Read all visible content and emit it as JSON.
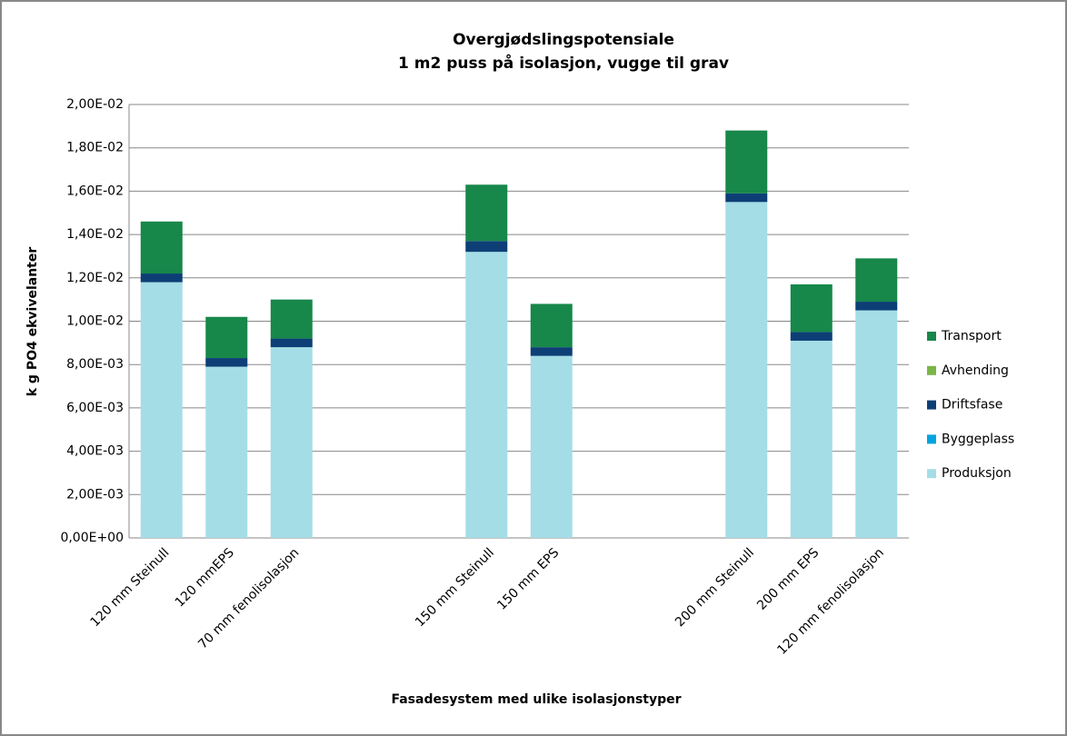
{
  "chart_data": {
    "type": "stacked_bar",
    "title": "Overgjødslingspotensiale",
    "subtitle": "1 m2 puss på isolasjon, vugge til grav",
    "x_label": "Fasadesystem med ulike isolasjonstyper",
    "y_label": "k g PO4 ekvivelanter",
    "categories": [
      "120 mm Steinull",
      "120 mmEPS",
      "70 mm fenolisolasjon",
      null,
      null,
      "150 mm Steinull",
      "150 mm EPS",
      null,
      null,
      "200 mm Steinull",
      "200 mm EPS",
      "120 mm fenolisolasjon"
    ],
    "series": [
      {
        "name": "Produksjon",
        "color": "#a5dde6",
        "values": [
          0.0118,
          0.0079,
          0.0088,
          null,
          null,
          0.0132,
          0.0084,
          null,
          null,
          0.0155,
          0.0091,
          0.0105
        ]
      },
      {
        "name": "Byggeplass",
        "color": "#00a3e0",
        "values": [
          0,
          0,
          0,
          null,
          null,
          0,
          0,
          null,
          null,
          0,
          0,
          0
        ]
      },
      {
        "name": "Driftsfase",
        "color": "#0d3f76",
        "values": [
          0.0004,
          0.0004,
          0.0004,
          null,
          null,
          0.0005,
          0.0004,
          null,
          null,
          0.0004,
          0.0004,
          0.0004
        ]
      },
      {
        "name": "Avhending",
        "color": "#7ab648",
        "values": [
          0,
          0,
          0,
          null,
          null,
          0,
          0,
          null,
          null,
          0,
          0,
          0
        ]
      },
      {
        "name": "Transport",
        "color": "#17874a",
        "values": [
          0.0024,
          0.0019,
          0.0018,
          null,
          null,
          0.0026,
          0.002,
          null,
          null,
          0.0029,
          0.0022,
          0.002
        ]
      }
    ],
    "ylim": [
      0,
      0.02
    ],
    "yticks": [
      {
        "value": 0,
        "label": "0,00E+00"
      },
      {
        "value": 0.002,
        "label": "2,00E-03"
      },
      {
        "value": 0.004,
        "label": "4,00E-03"
      },
      {
        "value": 0.006,
        "label": "6,00E-03"
      },
      {
        "value": 0.008,
        "label": "8,00E-03"
      },
      {
        "value": 0.01,
        "label": "1,00E-02"
      },
      {
        "value": 0.012,
        "label": "1,20E-02"
      },
      {
        "value": 0.014,
        "label": "1,40E-02"
      },
      {
        "value": 0.016,
        "label": "1,60E-02"
      },
      {
        "value": 0.018,
        "label": "1,80E-02"
      },
      {
        "value": 0.02,
        "label": "2,00E-02"
      }
    ],
    "grid": true,
    "legend": "right"
  }
}
